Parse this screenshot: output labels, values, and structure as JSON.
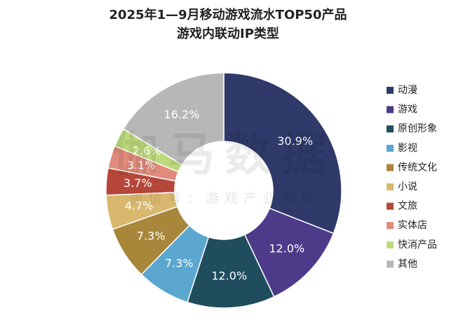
{
  "chart_data": {
    "type": "donut",
    "title": "2025年1—9月移动游戏流水TOP50产品",
    "subtitle": "游戏内联动IP类型",
    "watermark": "伽马数据",
    "watermark_subtitle": "微信号：游戏产业报告",
    "categories": [
      "动漫",
      "游戏",
      "原创形象",
      "影视",
      "传统文化",
      "小说",
      "文旅",
      "实体店",
      "快消产品",
      "其他"
    ],
    "values": [
      30.9,
      12.0,
      12.0,
      7.3,
      7.3,
      4.7,
      3.7,
      3.1,
      2.6,
      16.2
    ],
    "value_labels": [
      "30.9%",
      "12.0%",
      "12.0%",
      "7.3%",
      "7.3%",
      "4.7%",
      "3.7%",
      "3.1%",
      "2.6%",
      "16.2%"
    ],
    "colors": [
      "#2f3a6a",
      "#4d3a88",
      "#1f4d5e",
      "#5ba7d0",
      "#a8873a",
      "#d8b86e",
      "#b5473a",
      "#e08b7b",
      "#bcd97c",
      "#b7b7b7"
    ],
    "legend": "right"
  }
}
